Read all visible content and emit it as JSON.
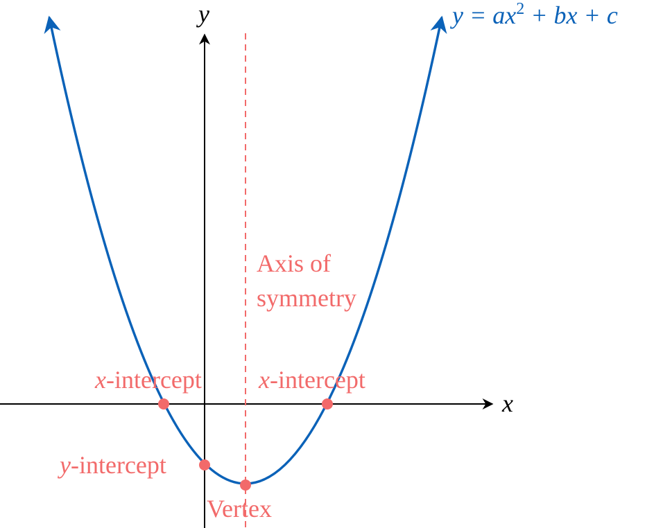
{
  "axes": {
    "x_label": "x",
    "y_label": "y"
  },
  "equation": {
    "lhs": "y",
    "rhs_base": "= ax",
    "exponent": "2",
    "rhs_rest": "+ bx + c"
  },
  "labels": {
    "axis_of_symmetry": [
      "Axis of",
      "symmetry"
    ],
    "x_intercept_left": {
      "var": "x",
      "text": "-intercept"
    },
    "x_intercept_right": {
      "var": "x",
      "text": "-intercept"
    },
    "y_intercept": {
      "var": "y",
      "text": "-intercept"
    },
    "vertex": "Vertex"
  }
}
